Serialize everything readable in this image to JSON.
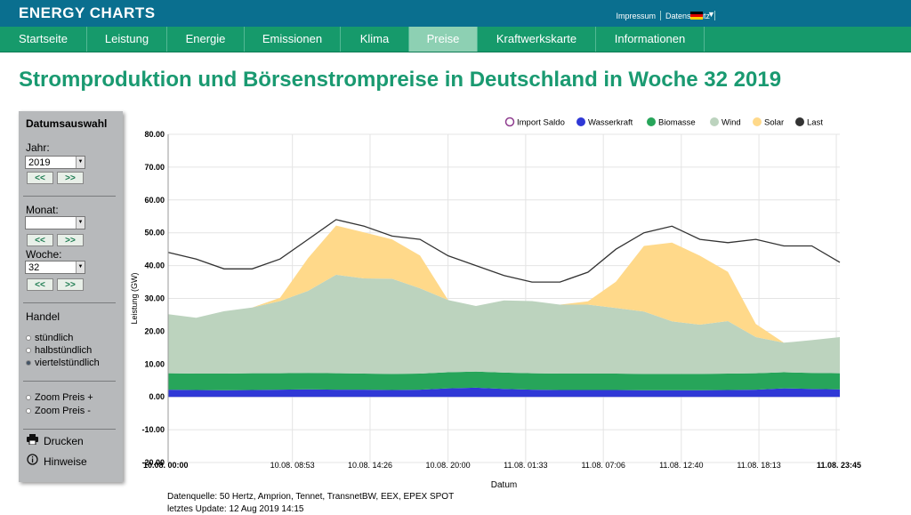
{
  "header": {
    "brand": "ENERGY CHARTS",
    "links": [
      "Impressum",
      "Datenschutz"
    ],
    "lang_caret": "▼"
  },
  "nav": {
    "tabs": [
      {
        "label": "Startseite"
      },
      {
        "label": "Leistung"
      },
      {
        "label": "Energie"
      },
      {
        "label": "Emissionen"
      },
      {
        "label": "Klima"
      },
      {
        "label": "Preise"
      },
      {
        "label": "Kraftwerkskarte"
      },
      {
        "label": "Informationen"
      }
    ],
    "active": "Preise"
  },
  "page": {
    "title": "Stromproduktion und Börsenstrompreise in Deutschland in Woche 32 2019"
  },
  "sidebar": {
    "heading": "Datumsauswahl",
    "year_label": "Jahr:",
    "year_value": "2019",
    "month_label": "Monat:",
    "month_value": "",
    "week_label": "Woche:",
    "week_value": "32",
    "prev": "<<",
    "next": ">>",
    "handel_label": "Handel",
    "handel_options": [
      "stündlich",
      "halbstündlich",
      "viertelstündlich"
    ],
    "zoom_in": "Zoom Preis +",
    "zoom_out": "Zoom Preis -",
    "print": "Drucken",
    "hints": "Hinweise"
  },
  "footer": {
    "source": "Datenquelle: 50 Hertz, Amprion, Tennet, TransnetBW, EEX, EPEX SPOT",
    "update": "letztes Update: 12 Aug 2019 14:15"
  },
  "colors": {
    "water": "#2f38d6",
    "biomass": "#27a55a",
    "wind": "#bcd3be",
    "solar": "#ffd98a",
    "load": "#333333",
    "import": "#8e3c8e",
    "title": "#1a9a71"
  },
  "chart_data": {
    "type": "area",
    "xlabel": "Datum",
    "ylabel": "Leistung (GW)",
    "ylim": [
      -20,
      80
    ],
    "yticks": [
      "80.00",
      "70.00",
      "60.00",
      "50.00",
      "40.00",
      "30.00",
      "20.00",
      "10.00",
      "0.00",
      "-10.00",
      "-20.00"
    ],
    "x_tick_labels": [
      "10.08. 00:00",
      "10.08. 08:53",
      "10.08. 14:26",
      "10.08. 20:00",
      "11.08. 01:33",
      "11.08. 07:06",
      "11.08. 12:40",
      "11.08. 18:13",
      "11.08. 23:45"
    ],
    "x_tick_hours": [
      0,
      8.88,
      14.43,
      20,
      25.55,
      31.1,
      36.67,
      42.22,
      47.75
    ],
    "legend": [
      "Import Saldo",
      "Wasserkraft",
      "Biomasse",
      "Wind",
      "Solar",
      "Last"
    ],
    "legend_position": "top-right",
    "grid": true,
    "x_hours": [
      0,
      2,
      4,
      6,
      8,
      10,
      12,
      14,
      16,
      18,
      20,
      22,
      24,
      26,
      28,
      30,
      32,
      34,
      36,
      38,
      40,
      42,
      44,
      46,
      48
    ],
    "series": [
      {
        "name": "Wasserkraft",
        "values": [
          2.2,
          2.1,
          2.0,
          2.1,
          2.2,
          2.3,
          2.2,
          2.2,
          2.1,
          2.2,
          2.6,
          2.8,
          2.4,
          2.2,
          2.1,
          2.1,
          2.1,
          2.0,
          2.0,
          2.0,
          2.1,
          2.2,
          2.6,
          2.4,
          2.3
        ]
      },
      {
        "name": "Biomasse",
        "values": [
          5.0,
          5.0,
          5.1,
          5.1,
          5.0,
          5.0,
          5.0,
          4.9,
          4.9,
          4.9,
          4.9,
          4.9,
          5.0,
          5.0,
          5.0,
          5.0,
          5.0,
          5.0,
          5.0,
          5.0,
          5.0,
          5.0,
          4.9,
          4.9,
          4.9
        ]
      },
      {
        "name": "Wind",
        "values": [
          18,
          17,
          19,
          20,
          22,
          25,
          30,
          29,
          29,
          26,
          22,
          20,
          22,
          22,
          21,
          21,
          20,
          19,
          16,
          15,
          16,
          11,
          9,
          10,
          11
        ]
      },
      {
        "name": "Solar",
        "values": [
          0,
          0,
          0,
          0,
          1,
          10,
          15,
          14,
          12,
          10,
          0,
          0,
          0,
          0,
          0,
          1,
          8,
          20,
          24,
          21,
          15,
          4,
          0,
          0,
          0
        ]
      },
      {
        "name": "Last",
        "values": [
          44,
          42,
          39,
          39,
          42,
          48,
          54,
          52,
          49,
          48,
          43,
          40,
          37,
          35,
          35,
          38,
          45,
          50,
          52,
          48,
          47,
          48,
          46,
          46,
          41
        ]
      }
    ]
  }
}
